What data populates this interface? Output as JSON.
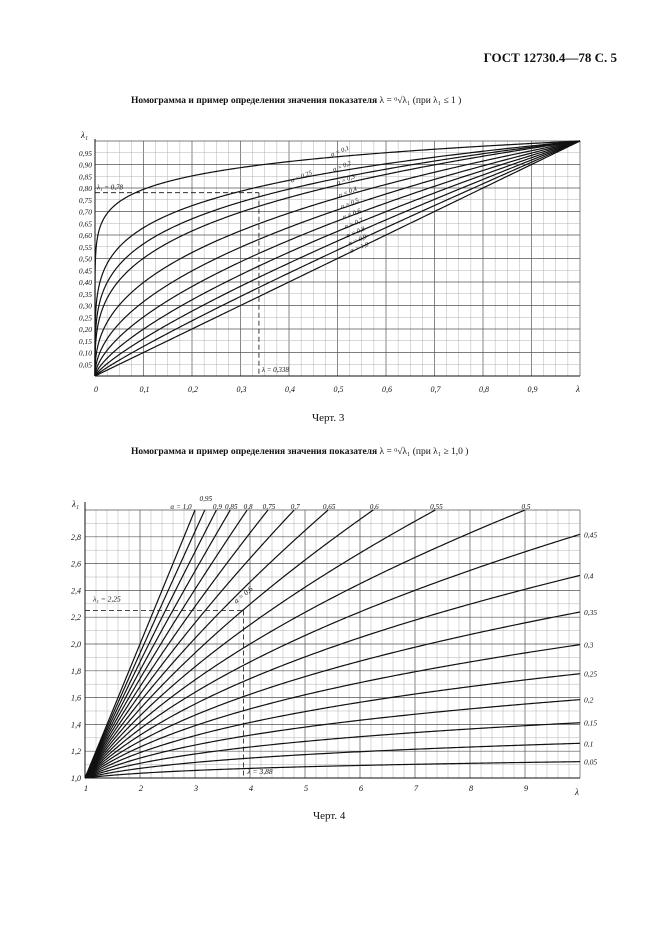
{
  "header": {
    "text": "ГОСТ 12730.4—78 С. 5"
  },
  "chart3": {
    "title": "Номограмма и пример определения значения показателя",
    "formula": "λ = ᵅ√λ₁  (при λ₁ ≤ 1 )",
    "caption": "Черт. 3"
  },
  "chart4": {
    "title": "Номограмма и пример  определения значения показателя",
    "formula": "λ = ᵅ√λ₁   (при λ₁ ≥ 1,0 )",
    "caption": "Черт. 4"
  },
  "chart_data": [
    {
      "type": "line",
      "xlabel": "λ",
      "ylabel": "λ₁",
      "xlim": [
        0,
        1
      ],
      "ylim": [
        0,
        1
      ],
      "x_ticks": [
        "0",
        "0,1",
        "0,2",
        "0,3",
        "0,4",
        "0,5",
        "0,6",
        "0,7",
        "0,8",
        "0,9"
      ],
      "y_ticks": [
        "0,05",
        "0,10",
        "0,15",
        "0,20",
        "0,25",
        "0,30",
        "0,35",
        "0,40",
        "0,45",
        "0,50",
        "0,55",
        "0,60",
        "0,65",
        "0,70",
        "0,75",
        "0,80",
        "0,85",
        "0,90",
        "0,95"
      ],
      "series": [
        {
          "name": "α = 0,1",
          "alpha": 0.1
        },
        {
          "name": "α = 0,2",
          "alpha": 0.2
        },
        {
          "name": "α = 0,25",
          "alpha": 0.25
        },
        {
          "name": "α = 0,3",
          "alpha": 0.3
        },
        {
          "name": "α = 0,4",
          "alpha": 0.4
        },
        {
          "name": "α = 0,5",
          "alpha": 0.5
        },
        {
          "name": "α = 0,6",
          "alpha": 0.6
        },
        {
          "name": "α = 0,7",
          "alpha": 0.7
        },
        {
          "name": "α = 0,8",
          "alpha": 0.8
        },
        {
          "name": "α = 0,9",
          "alpha": 0.9
        },
        {
          "name": "α = 1,0",
          "alpha": 1.0
        }
      ],
      "example": {
        "y_label": "λ₁ = 0,78",
        "y_value": 0.78,
        "x_label": "λ = 0,338",
        "x_value": 0.338,
        "alpha": 0.25
      }
    },
    {
      "type": "line",
      "xlabel": "λ",
      "ylabel": "λ₁",
      "xlim": [
        1,
        10
      ],
      "ylim": [
        1,
        3
      ],
      "x_ticks": [
        "1",
        "2",
        "3",
        "4",
        "5",
        "6",
        "7",
        "8",
        "9"
      ],
      "y_ticks": [
        "1,0",
        "1,2",
        "1,4",
        "1,6",
        "1,8",
        "2,0",
        "2,2",
        "2,4",
        "2,6",
        "2,8"
      ],
      "series_top": [
        {
          "name": "α = 1,0",
          "alpha": 1.0
        },
        {
          "name": "0,95",
          "alpha": 0.95
        },
        {
          "name": "0,9",
          "alpha": 0.9
        },
        {
          "name": "0,85",
          "alpha": 0.85
        },
        {
          "name": "0,8",
          "alpha": 0.8
        },
        {
          "name": "0,75",
          "alpha": 0.75
        },
        {
          "name": "0,7",
          "alpha": 0.7
        },
        {
          "name": "0,65",
          "alpha": 0.65
        },
        {
          "name": "0,6",
          "alpha": 0.6
        },
        {
          "name": "0,55",
          "alpha": 0.55
        },
        {
          "name": "0,5",
          "alpha": 0.5
        }
      ],
      "series_right": [
        {
          "name": "0,45",
          "alpha": 0.45
        },
        {
          "name": "0,4",
          "alpha": 0.4
        },
        {
          "name": "0,35",
          "alpha": 0.35
        },
        {
          "name": "0,3",
          "alpha": 0.3
        },
        {
          "name": "0,25",
          "alpha": 0.25
        },
        {
          "name": "0,2",
          "alpha": 0.2
        },
        {
          "name": "0,15",
          "alpha": 0.15
        },
        {
          "name": "0,1",
          "alpha": 0.1
        },
        {
          "name": "0,05",
          "alpha": 0.05
        }
      ],
      "example": {
        "y_label": "λ₁ = 2,25",
        "y_value": 2.25,
        "x_label": "λ = 3,88",
        "x_value": 3.88,
        "alpha_label": "α = 0,6"
      }
    }
  ]
}
